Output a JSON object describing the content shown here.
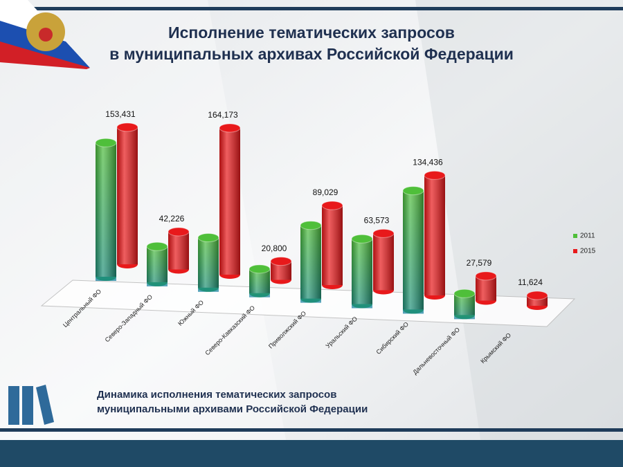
{
  "chart_data": {
    "type": "bar",
    "title": [
      "Исполнение тематических запросов",
      "в муниципальных архивах Российской Федерации"
    ],
    "subtitle": [
      "Динамика исполнения тематических запросов",
      "муниципальными архивами Российской Федерации"
    ],
    "categories": [
      "Центральный ФО",
      "Северо-Западный ФО",
      "Южный ФО",
      "Северо-Кавказский ФО",
      "Приволжский ФО",
      "Уральский ФО",
      "Сибирский ФО",
      "Дальневосточный ФО",
      "Крымский ФО"
    ],
    "series": [
      {
        "name": "2011",
        "color": "#4fbf3a",
        "values": [
          150000,
          40000,
          56000,
          27000,
          82000,
          73000,
          133000,
          24000,
          null
        ]
      },
      {
        "name": "2015",
        "color": "#e8191b",
        "values": [
          153431,
          42226,
          164173,
          20800,
          89029,
          63573,
          134436,
          27579,
          11624
        ],
        "value_labels": [
          "153,431",
          "42,226",
          "164,173",
          "20,800",
          "89,029",
          "63,573",
          "134,436",
          "27,579",
          "11,624"
        ]
      }
    ],
    "legend": "right"
  }
}
